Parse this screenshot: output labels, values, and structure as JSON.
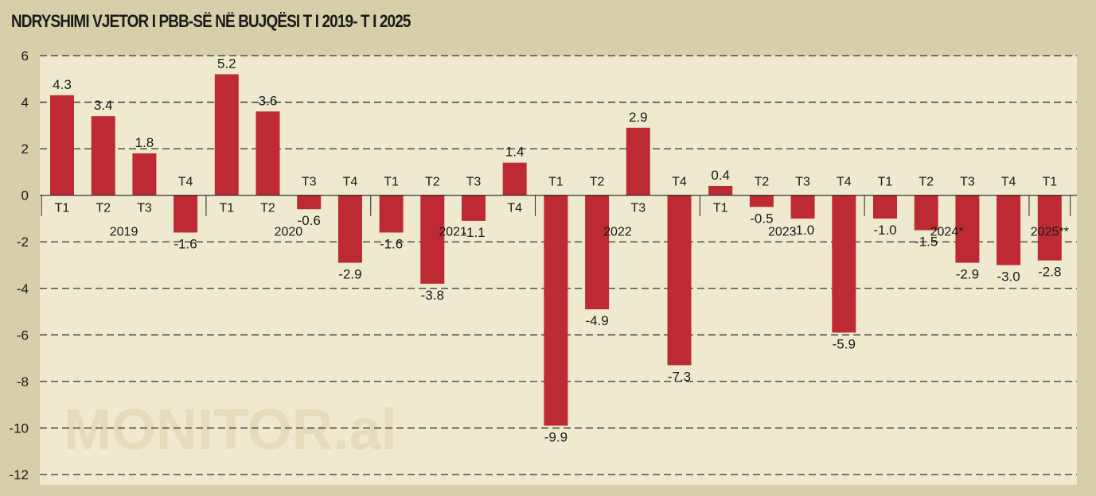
{
  "title": "NDRYSHIMI VJETOR I PBB-SË NË BUJQËSI T I  2019- T I 2025",
  "watermark": "MONITOR.al",
  "colors": {
    "bar": "#be2a33",
    "background": "#d6cfa9",
    "plot_background": "#efe9cf",
    "grid": "#333333"
  },
  "chart_data": {
    "type": "bar",
    "ylim": [
      -12,
      6
    ],
    "yticks": [
      "6",
      "4",
      "2",
      "0",
      "-2",
      "-4",
      "-6",
      "-8",
      "-10",
      "-12"
    ],
    "grid": true,
    "legend": "none",
    "categories": [
      "T1",
      "T2",
      "T3",
      "T4",
      "T1",
      "T2",
      "T3",
      "T4",
      "T1",
      "T2",
      "T3",
      "T4",
      "T1",
      "T2",
      "T3",
      "T4",
      "T1",
      "T2",
      "T3",
      "T4",
      "T1",
      "T2",
      "T3",
      "T4",
      "T1"
    ],
    "values": [
      4.3,
      3.4,
      1.8,
      -1.6,
      5.2,
      3.6,
      -0.6,
      -2.9,
      -1.6,
      -3.8,
      -1.1,
      1.4,
      -9.9,
      -4.9,
      2.9,
      -7.3,
      0.4,
      -0.5,
      -1.0,
      -5.9,
      -1.0,
      -1.5,
      -2.9,
      -3.0,
      -2.8
    ],
    "value_labels": [
      "4.3",
      "3.4",
      "1.8",
      "-1.6",
      "5.2",
      "3.6",
      "-0.6",
      "-2.9",
      "-1.6",
      "-3.8",
      "-1.1",
      "1.4",
      "-9.9",
      "-4.9",
      "2.9",
      "-7.3",
      "0.4",
      "-0.5",
      "-1.0",
      "-5.9",
      "-1.0",
      "-1.5",
      "-2.9",
      "-3.0",
      "-2.8"
    ],
    "years": [
      {
        "label": "2019",
        "start": 0,
        "count": 4
      },
      {
        "label": "2020",
        "start": 4,
        "count": 4
      },
      {
        "label": "2021",
        "start": 8,
        "count": 4
      },
      {
        "label": "2022",
        "start": 12,
        "count": 4
      },
      {
        "label": "2023",
        "start": 16,
        "count": 4
      },
      {
        "label": "2024*",
        "start": 20,
        "count": 4
      },
      {
        "label": "2025**",
        "start": 24,
        "count": 1
      }
    ]
  }
}
